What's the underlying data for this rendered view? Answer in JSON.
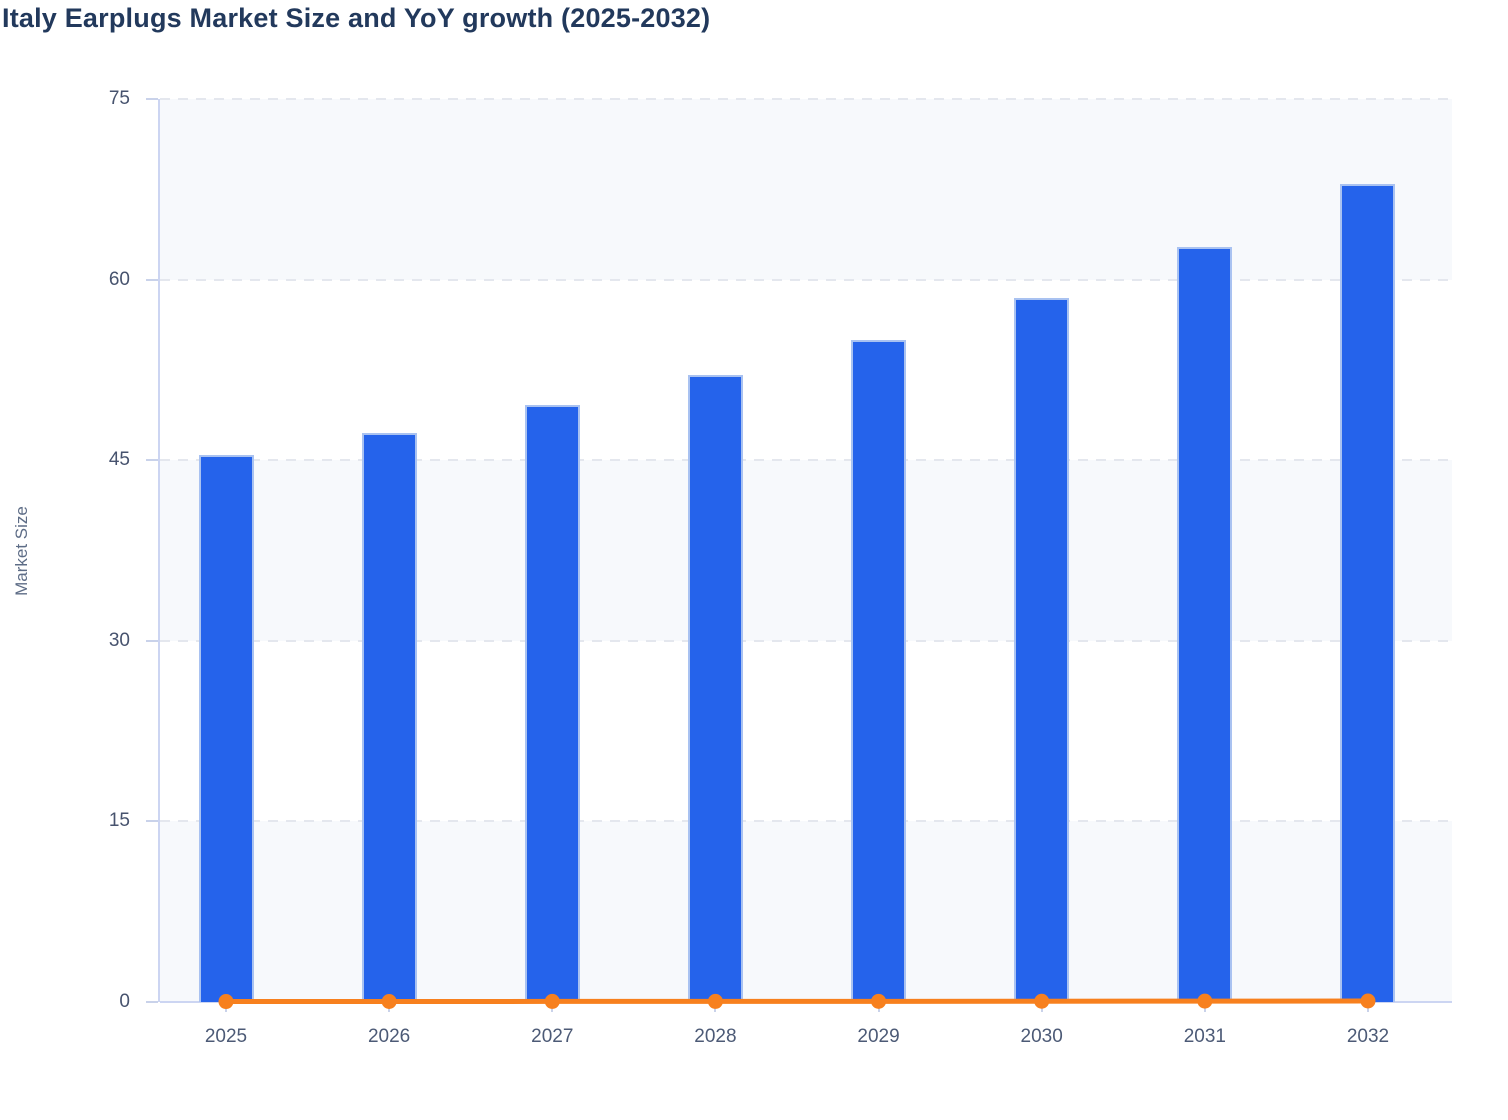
{
  "chart_data": {
    "type": "bar",
    "title": "Italy Earplugs Market Size and YoY growth (2025-2032)",
    "xlabel": "",
    "ylabel": "Market Size",
    "categories": [
      "2025",
      "2026",
      "2027",
      "2028",
      "2029",
      "2030",
      "2031",
      "2032"
    ],
    "series": [
      {
        "name": "Market Size",
        "type": "bar",
        "values": [
          45.4,
          47.3,
          49.6,
          52.1,
          55.0,
          58.5,
          62.7,
          67.9
        ]
      },
      {
        "name": "YoY growth",
        "type": "line",
        "values": [
          0.04,
          0.042,
          0.047,
          0.051,
          0.056,
          0.063,
          0.072,
          0.083
        ]
      }
    ],
    "ylim": [
      0,
      75
    ],
    "yticks": [
      0,
      15,
      30,
      45,
      60,
      75
    ],
    "grid": "horizontal-dashed",
    "plot_bands": "alternating horizontal bands every 15 units",
    "legend": "none"
  },
  "colors": {
    "bar_fill": "#2563eb",
    "bar_border": "#a9c2f1",
    "line": "#f7801e",
    "marker": "#f7801e",
    "title_text": "#22395c",
    "tick_text": "#47536e",
    "axis_title_text": "#5d6c86",
    "axis_line": "#ccd5f2",
    "gridline": "#e4e7ee",
    "band_fill": "#f7f9fc",
    "background": "#ffffff"
  }
}
